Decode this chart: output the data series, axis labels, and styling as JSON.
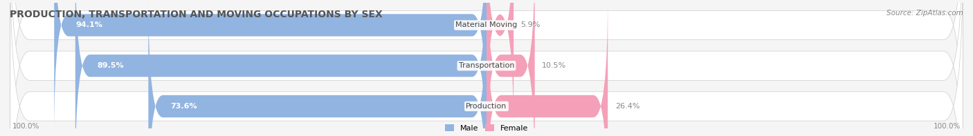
{
  "title": "PRODUCTION, TRANSPORTATION AND MOVING OCCUPATIONS BY SEX",
  "source": "Source: ZipAtlas.com",
  "categories": [
    "Material Moving",
    "Transportation",
    "Production"
  ],
  "male_values": [
    94.1,
    89.5,
    73.6
  ],
  "female_values": [
    5.9,
    10.5,
    26.4
  ],
  "male_color": "#92b4e0",
  "female_color": "#f4a0b8",
  "male_label": "Male",
  "female_label": "Female",
  "title_fontsize": 10,
  "source_fontsize": 7.5,
  "label_fontsize": 8,
  "axis_label_fontsize": 7.5,
  "left_axis_label": "100.0%",
  "right_axis_label": "100.0%",
  "background_color": "#f5f5f5"
}
